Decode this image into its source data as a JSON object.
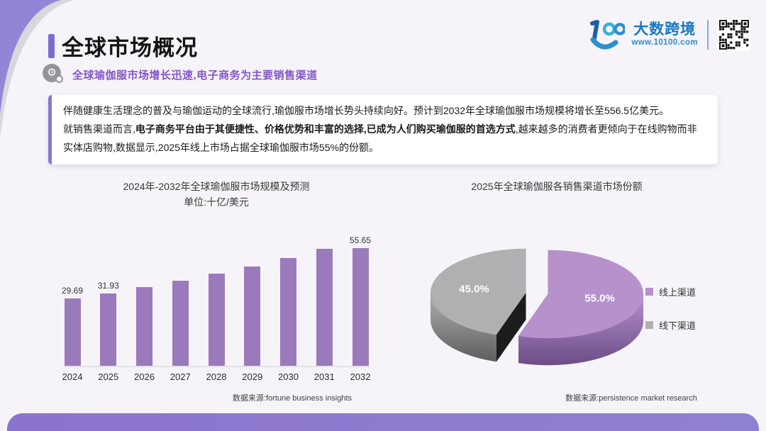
{
  "page": {
    "background": "#f6f4f8",
    "accent_purple": "#8b74cc",
    "corner_purple": "#9186d6",
    "corner_gray": "#d9d6de"
  },
  "header": {
    "title": "全球市场概况",
    "subtitle": "全球瑜伽服市场增长迅速,电子商务为主要销售渠道",
    "logo_text": "大数跨境",
    "logo_url": "www.10100.com"
  },
  "intro": {
    "p1": "伴随健康生活理念的普及与瑜伽运动的全球流行,瑜伽服市场增长势头持续向好。预计到2032年全球瑜伽服市场规模将增长至556.5亿美元。",
    "p2_prefix": "就销售渠道而言,",
    "p2_bold": "电子商务平台由于其便捷性、价格优势和丰富的选择,已成为人们购买瑜伽服的首选方式",
    "p2_suffix": ",越来越多的消费者更倾向于在线购物而非实体店购物,数据显示,2025年线上市场占据全球瑜伽服市场55%的份额。"
  },
  "chart_data": [
    {
      "type": "bar",
      "title": "2024年-2032年全球瑜伽服市场规模及预测",
      "subtitle": "单位:十亿/美元",
      "categories": [
        "2024",
        "2025",
        "2026",
        "2027",
        "2028",
        "2029",
        "2030",
        "2031",
        "2032"
      ],
      "values": [
        29.69,
        31.93,
        34.7,
        37.5,
        40.6,
        43.8,
        47.6,
        51.6,
        55.65
      ],
      "data_labels": [
        "29.69",
        "31.93",
        "",
        "",
        "",
        "",
        "",
        "",
        "55.65"
      ],
      "bar_color": "#9b7abc",
      "ylim": [
        0,
        58
      ],
      "grid": false,
      "source": "数据来源:fortune business insights"
    },
    {
      "type": "pie",
      "title": "2025年全球瑜伽服各销售渠道市场份额",
      "style": "3d-exploded",
      "slices": [
        {
          "label": "线上渠道",
          "value": 55.0,
          "display": "55.0%",
          "color": "#b691cc",
          "side_color": "#6d4d87",
          "cut_color": "#2a1f33"
        },
        {
          "label": "线下渠道",
          "value": 45.0,
          "display": "45.0%",
          "color": "#b2afb3",
          "side_color": "#5f5d60",
          "cut_color": "#1c1c1c"
        }
      ],
      "legend_position": "right",
      "source": "数据来源:persistence market research"
    }
  ]
}
